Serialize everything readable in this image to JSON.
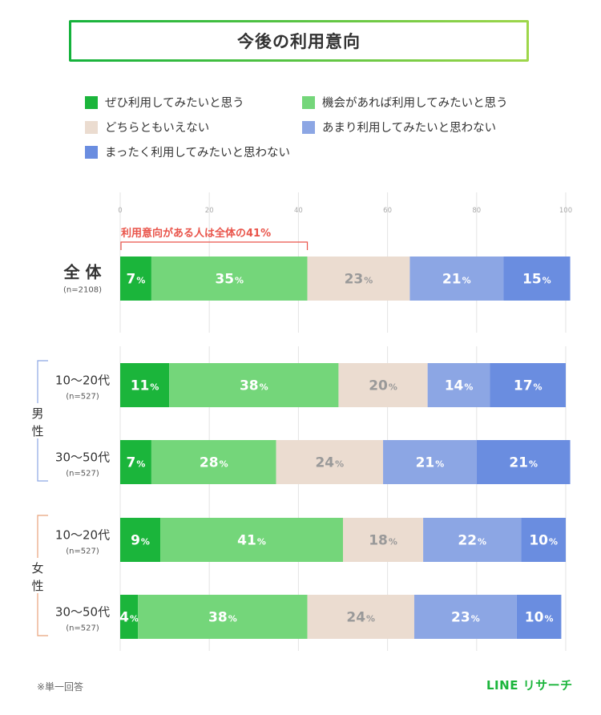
{
  "title": "今後の利用意向",
  "legend": [
    {
      "label": "ぜひ利用してみたいと思う",
      "color": "#1bb53b"
    },
    {
      "label": "機会があれば利用してみたいと思う",
      "color": "#74d67a"
    },
    {
      "label": "どちらともいえない",
      "color": "#ebdcd0"
    },
    {
      "label": "あまり利用してみたいと思わない",
      "color": "#8ca6e4"
    },
    {
      "label": "まったく利用してみたいと思わない",
      "color": "#6a8de0"
    }
  ],
  "annotation": "利用意向がある人は全体の41%",
  "footnote": "※単一回答",
  "brand": "LINE リサーチ",
  "chart_data": {
    "type": "bar",
    "orientation": "horizontal-stacked-100",
    "x_ticks": [
      0,
      20,
      40,
      60,
      80,
      100
    ],
    "xlim": [
      0,
      100
    ],
    "unit": "%",
    "groups": [
      {
        "name": "",
        "rows": [
          0
        ]
      },
      {
        "name": "男性",
        "rows": [
          1,
          2
        ]
      },
      {
        "name": "女性",
        "rows": [
          3,
          4
        ]
      }
    ],
    "categories": [
      {
        "label": "全 体",
        "n": "(n=2108)"
      },
      {
        "label": "10〜20代",
        "n": "(n=527)"
      },
      {
        "label": "30〜50代",
        "n": "(n=527)"
      },
      {
        "label": "10〜20代",
        "n": "(n=527)"
      },
      {
        "label": "30〜50代",
        "n": "(n=527)"
      }
    ],
    "series": [
      {
        "name": "ぜひ利用してみたいと思う",
        "values": [
          7,
          11,
          7,
          9,
          4
        ]
      },
      {
        "name": "機会があれば利用してみたいと思う",
        "values": [
          35,
          38,
          28,
          41,
          38
        ]
      },
      {
        "name": "どちらともいえない",
        "values": [
          23,
          20,
          24,
          18,
          24
        ]
      },
      {
        "name": "あまり利用してみたいと思わない",
        "values": [
          21,
          14,
          21,
          22,
          23
        ]
      },
      {
        "name": "まったく利用してみたいと思わない",
        "values": [
          15,
          17,
          21,
          10,
          10
        ]
      }
    ]
  }
}
